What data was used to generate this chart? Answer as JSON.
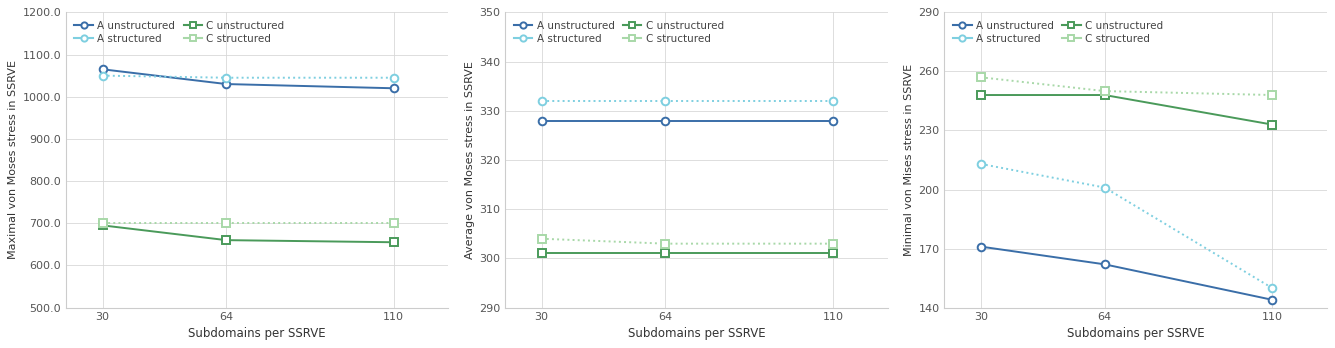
{
  "x": [
    30,
    64,
    110
  ],
  "chart1": {
    "ylabel": "Maximal von Moses stress in SSRVE",
    "xlabel": "Subdomains per SSRVE",
    "ylim": [
      500.0,
      1200.0
    ],
    "yticks": [
      500.0,
      600.0,
      700.0,
      800.0,
      900.0,
      1000.0,
      1100.0,
      1200.0
    ],
    "ytick_labels": [
      "500.0",
      "600.0",
      "700.0",
      "800.0",
      "900.0",
      "1000.0",
      "1100.0",
      "1200.0"
    ],
    "A_unstruct": [
      1065,
      1030,
      1020
    ],
    "A_struct": [
      1050,
      1045,
      1045
    ],
    "C_unstruct": [
      695,
      660,
      655
    ],
    "C_struct": [
      700,
      700,
      700
    ]
  },
  "chart2": {
    "ylabel": "Average von Moses stress in SSRVE",
    "xlabel": "Subdomains per SSRVE",
    "ylim": [
      290,
      350
    ],
    "yticks": [
      290,
      300,
      310,
      320,
      330,
      340,
      350
    ],
    "ytick_labels": [
      "290",
      "300",
      "310",
      "320",
      "330",
      "340",
      "350"
    ],
    "A_unstruct": [
      328,
      328,
      328
    ],
    "A_struct": [
      332,
      332,
      332
    ],
    "C_unstruct": [
      301,
      301,
      301
    ],
    "C_struct": [
      304,
      303,
      303
    ]
  },
  "chart3": {
    "ylabel": "Minimal von Mises stress in SSRVE",
    "xlabel": "Subdomains per SSRVE",
    "ylim": [
      140,
      290
    ],
    "yticks": [
      140,
      170,
      200,
      230,
      260,
      290
    ],
    "ytick_labels": [
      "140",
      "170",
      "200",
      "230",
      "260",
      "290"
    ],
    "A_unstruct": [
      171,
      162,
      144
    ],
    "A_struct": [
      213,
      201,
      150
    ],
    "C_unstruct": [
      248,
      248,
      233
    ],
    "C_struct": [
      257,
      250,
      248
    ]
  },
  "color_A_unstruct": "#3a6ea8",
  "color_A_struct": "#7ecfe0",
  "color_C_unstruct": "#4a9a5a",
  "color_C_struct": "#a8d8a8",
  "lw": 1.4,
  "ms": 5.5,
  "mew": 1.4
}
